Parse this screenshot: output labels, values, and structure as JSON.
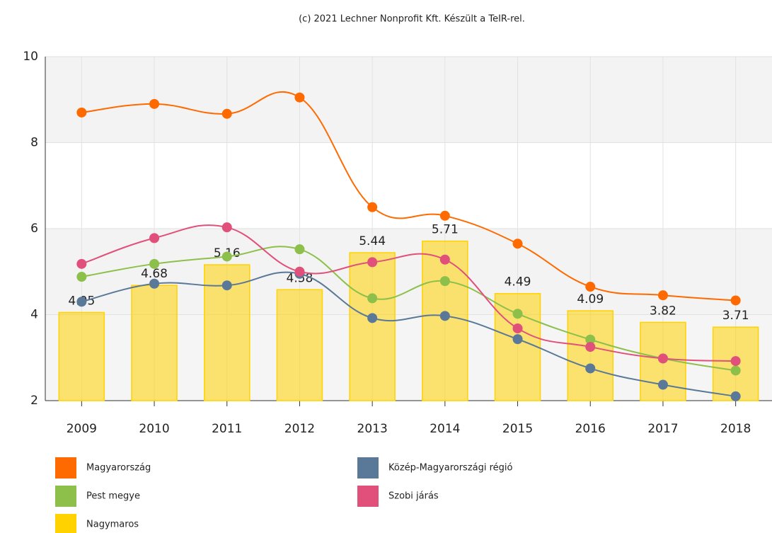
{
  "chart_data": {
    "type": "line",
    "title": "(c) 2021 Lechner Nonprofit Kft. Készült a TeIR-rel.",
    "categories": [
      "2009",
      "2010",
      "2011",
      "2012",
      "2013",
      "2014",
      "2015",
      "2016",
      "2017",
      "2018"
    ],
    "series": [
      {
        "name": "Magyarország",
        "type": "line",
        "color": "#ff6a00",
        "values": [
          8.7,
          8.9,
          8.67,
          9.05,
          6.5,
          6.3,
          5.65,
          4.65,
          4.45,
          4.33
        ]
      },
      {
        "name": "Közép-Magyarországi régió",
        "type": "line",
        "color": "#5a7898",
        "values": [
          4.3,
          4.72,
          4.68,
          4.95,
          3.92,
          3.97,
          3.43,
          2.75,
          2.37,
          2.1
        ]
      },
      {
        "name": "Pest megye",
        "type": "line",
        "color": "#8cc04a",
        "values": [
          4.88,
          5.18,
          5.35,
          5.52,
          4.38,
          4.78,
          4.02,
          3.42,
          2.98,
          2.7
        ]
      },
      {
        "name": "Szobi járás",
        "type": "line",
        "color": "#e0507a",
        "values": [
          5.18,
          5.78,
          6.03,
          5.0,
          5.22,
          5.28,
          3.68,
          3.25,
          2.98,
          2.92
        ]
      },
      {
        "name": "Nagymaros",
        "type": "bar",
        "color": "#ffd200",
        "values": [
          4.05,
          4.68,
          5.16,
          4.58,
          5.44,
          5.71,
          4.49,
          4.09,
          3.82,
          3.71
        ]
      }
    ],
    "ylim": [
      2,
      10
    ],
    "yticks": [
      2,
      4,
      6,
      8,
      10
    ],
    "grid": true
  }
}
